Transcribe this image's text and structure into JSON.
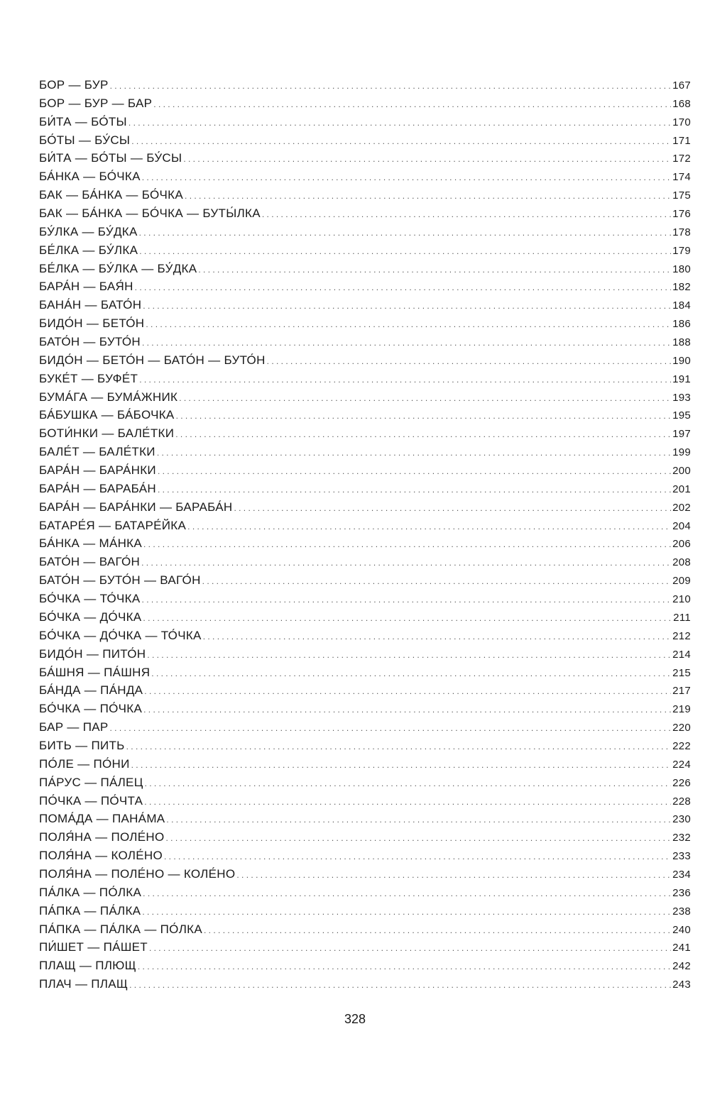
{
  "toc": [
    {
      "title": "БОР — БУР",
      "page": "167"
    },
    {
      "title": "БОР — БУР — БАР",
      "page": "168"
    },
    {
      "title": "БИ́ТА — БО́ТЫ",
      "page": "170"
    },
    {
      "title": "БО́ТЫ — БУ́СЫ",
      "page": "171"
    },
    {
      "title": "БИ́ТА — БО́ТЫ — БУ́СЫ",
      "page": "172"
    },
    {
      "title": "БА́НКА — БО́ЧКА",
      "page": "174"
    },
    {
      "title": "БАК — БА́НКА — БО́ЧКА",
      "page": "175"
    },
    {
      "title": "БАК — БА́НКА — БО́ЧКА — БУТЫ́ЛКА",
      "page": "176"
    },
    {
      "title": "БУ́ЛКА — БУ́ДКА",
      "page": "178"
    },
    {
      "title": "БЕ́ЛКА — БУ́ЛКА",
      "page": "179"
    },
    {
      "title": "БЕ́ЛКА — БУ́ЛКА — БУ́ДКА",
      "page": "180"
    },
    {
      "title": "БАРА́Н — БАЯ́Н",
      "page": "182"
    },
    {
      "title": "БАНА́Н — БАТО́Н",
      "page": "184"
    },
    {
      "title": "БИДО́Н — БЕТО́Н",
      "page": "186"
    },
    {
      "title": "БАТО́Н — БУТО́Н",
      "page": "188"
    },
    {
      "title": "БИДО́Н — БЕТО́Н — БАТО́Н — БУТО́Н",
      "page": "190"
    },
    {
      "title": "БУКЕ́Т — БУФЕ́Т",
      "page": "191"
    },
    {
      "title": "БУМА́ГА — БУМА́ЖНИК",
      "page": "193"
    },
    {
      "title": "БА́БУШКА — БА́БОЧКА",
      "page": "195"
    },
    {
      "title": "БОТИ́НКИ — БАЛЕ́ТКИ",
      "page": "197"
    },
    {
      "title": "БАЛЕ́Т — БАЛЕ́ТКИ",
      "page": "199"
    },
    {
      "title": "БАРА́Н — БАРА́НКИ",
      "page": "200"
    },
    {
      "title": "БАРА́Н — БАРАБА́Н",
      "page": "201"
    },
    {
      "title": "БАРА́Н — БАРА́НКИ — БАРАБА́Н",
      "page": "202"
    },
    {
      "title": "БАТАРЕ́Я — БАТАРЕ́ЙКА",
      "page": "204"
    },
    {
      "title": "БА́НКА — МА́НКА",
      "page": "206"
    },
    {
      "title": "БАТО́Н — ВАГО́Н",
      "page": "208"
    },
    {
      "title": "БАТО́Н — БУТО́Н — ВАГО́Н",
      "page": "209"
    },
    {
      "title": "БО́ЧКА — ТО́ЧКА",
      "page": "210"
    },
    {
      "title": "БО́ЧКА — ДО́ЧКА",
      "page": "211"
    },
    {
      "title": "БО́ЧКА — ДО́ЧКА — ТО́ЧКА",
      "page": "212"
    },
    {
      "title": "БИДО́Н — ПИТО́Н",
      "page": "214"
    },
    {
      "title": "БА́ШНЯ — ПА́ШНЯ",
      "page": "215"
    },
    {
      "title": "БА́НДА — ПА́НДА",
      "page": "217"
    },
    {
      "title": "БО́ЧКА — ПО́ЧКА",
      "page": "219"
    },
    {
      "title": "БАР — ПАР",
      "page": "220"
    },
    {
      "title": "БИТЬ — ПИТЬ",
      "page": "222"
    },
    {
      "title": "ПО́ЛЕ — ПО́НИ",
      "page": "224"
    },
    {
      "title": "ПА́РУС — ПА́ЛЕЦ",
      "page": "226"
    },
    {
      "title": "ПО́ЧКА — ПО́ЧТА",
      "page": "228"
    },
    {
      "title": "ПОМА́ДА — ПАНА́МА",
      "page": "230"
    },
    {
      "title": "ПОЛЯ́НА — ПОЛЕ́НО",
      "page": "232"
    },
    {
      "title": "ПОЛЯ́НА — КОЛЕ́НО",
      "page": "233"
    },
    {
      "title": "ПОЛЯ́НА — ПОЛЕ́НО — КОЛЕ́НО",
      "page": "234"
    },
    {
      "title": "ПА́ЛКА — ПО́ЛКА",
      "page": "236"
    },
    {
      "title": "ПА́ПКА — ПА́ЛКА",
      "page": "238"
    },
    {
      "title": "ПА́ПКА — ПА́ЛКА — ПО́ЛКА",
      "page": "240"
    },
    {
      "title": "ПИ́ШЕТ — ПА́ШЕТ",
      "page": "241"
    },
    {
      "title": "ПЛАЩ — ПЛЮЩ",
      "page": "242"
    },
    {
      "title": "ПЛАЧ — ПЛАЩ",
      "page": "243"
    }
  ],
  "page_number": "328"
}
